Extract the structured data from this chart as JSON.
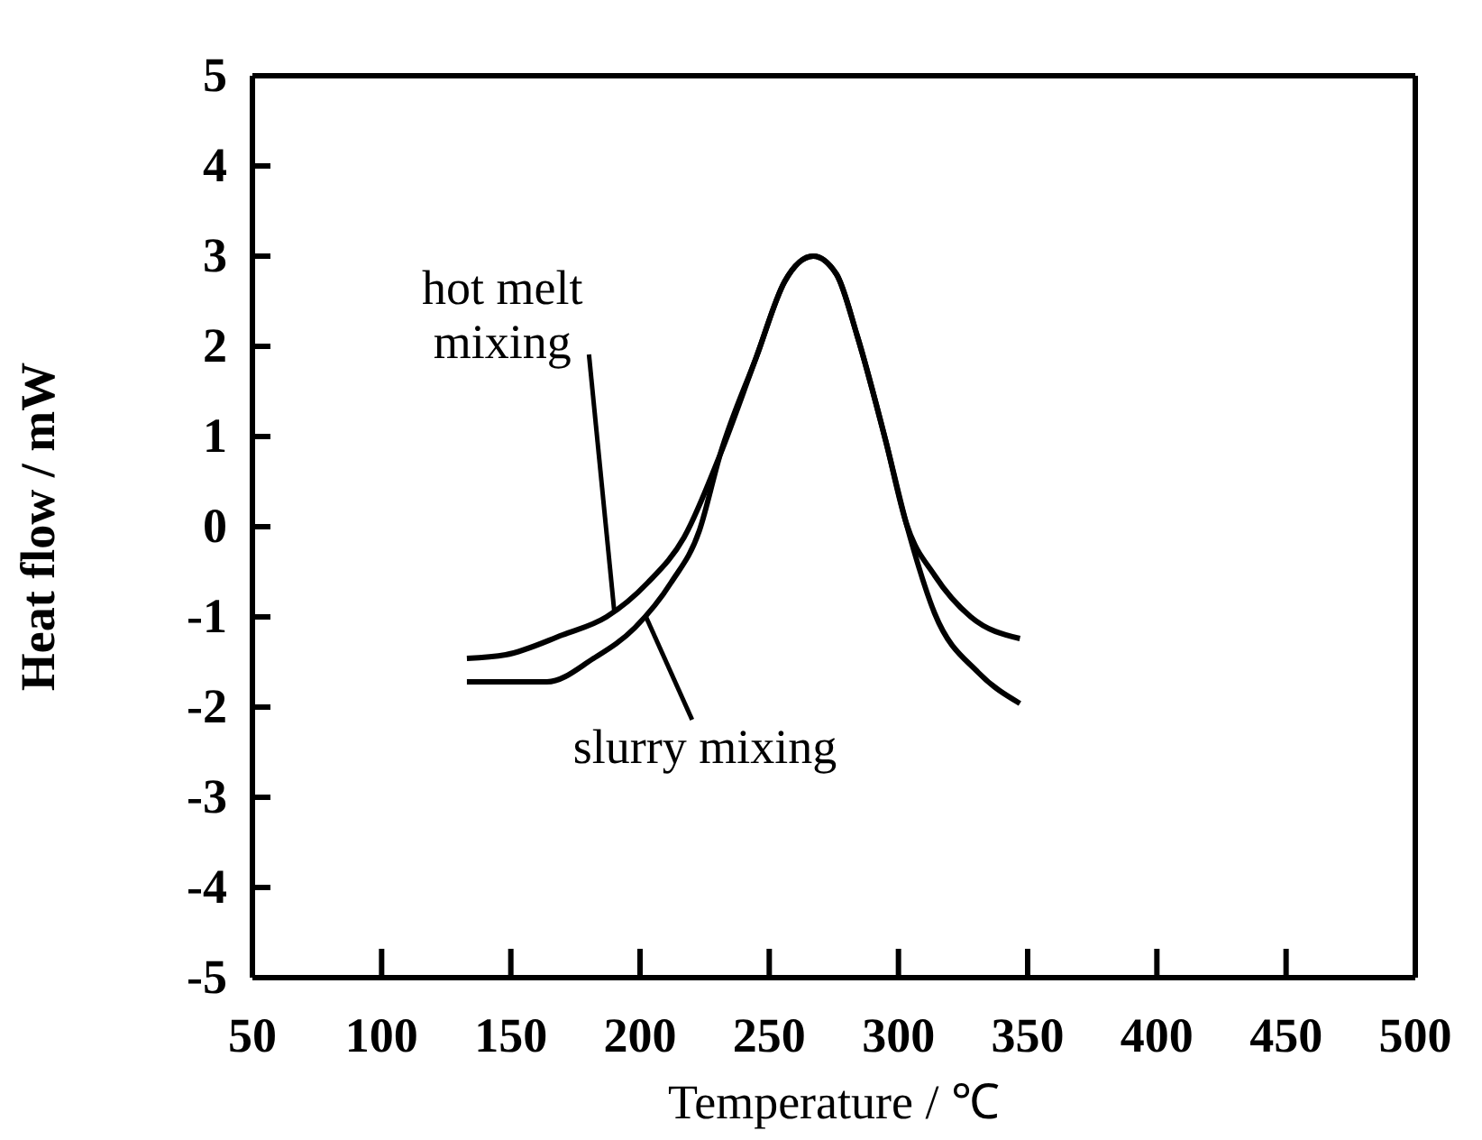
{
  "chart_data": {
    "type": "line",
    "xlabel": "Temperature / ℃",
    "ylabel": "Heat flow / mW",
    "xlim": [
      50,
      500
    ],
    "xticks": [
      50,
      100,
      150,
      200,
      250,
      300,
      350,
      400,
      450,
      500
    ],
    "ylim": [
      -5,
      5
    ],
    "yticks": [
      -5,
      -4,
      -3,
      -2,
      -1,
      0,
      1,
      2,
      3,
      4,
      5
    ],
    "grid": false,
    "line_style": "solid",
    "marker": "none",
    "series": [
      {
        "color": "#000000",
        "x": [
          133,
          148,
          170,
          187,
          203,
          217,
          231,
          245,
          256,
          267,
          276,
          284,
          295,
          303,
          314,
          328,
          347
        ],
        "values": [
          -1.46,
          -1.42,
          -1.2,
          -1.0,
          -0.62,
          -0.12,
          0.8,
          1.88,
          2.72,
          3.0,
          2.8,
          2.12,
          0.96,
          0.04,
          -0.54,
          -1.0,
          -1.24
        ]
      },
      {
        "color": "#000000",
        "x": [
          133,
          164,
          182,
          198,
          212,
          223,
          231,
          245,
          256,
          267,
          276,
          284,
          295,
          303,
          314,
          331,
          347
        ],
        "values": [
          -1.72,
          -1.72,
          -1.46,
          -1.12,
          -0.62,
          -0.04,
          0.8,
          1.88,
          2.72,
          3.0,
          2.8,
          2.12,
          0.96,
          0.04,
          -0.96,
          -1.62,
          -1.96
        ]
      }
    ],
    "annotations": [
      {
        "text": "hot melt mixing",
        "x": 190,
        "y": -0.93
      },
      {
        "text": "slurry mixing",
        "x": 202,
        "y": -0.98
      }
    ]
  }
}
